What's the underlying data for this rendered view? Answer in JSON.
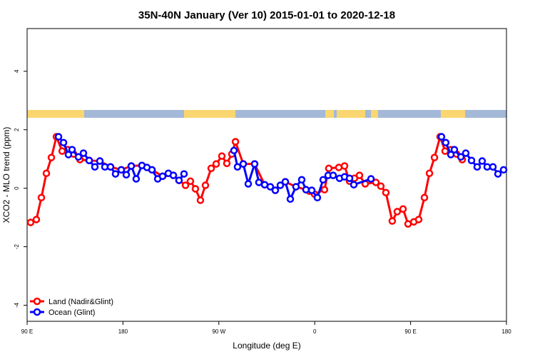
{
  "chart_data": {
    "type": "line",
    "title": "35N-40N January (Ver 10)   2015-01-01 to 2020-12-18",
    "x_label": "Longitude (deg E)",
    "y_label": "XCO2 - MLO trend (ppm)",
    "xlim": [
      90,
      540
    ],
    "ylim": [
      -4.55,
      5.46
    ],
    "xticks": [
      {
        "value": 90,
        "label": "90 E"
      },
      180,
      {
        "value": 270,
        "label": "90 W"
      },
      {
        "value": 360,
        "label": "0"
      },
      {
        "value": 450,
        "label": "90 E"
      },
      {
        "value": 540,
        "label": "180"
      }
    ],
    "yticks": [
      -4,
      -2,
      0,
      2,
      4
    ],
    "legend": "bottom-left",
    "series": [
      {
        "name": "Land (Nadir&Glint)",
        "color": "#ff0000",
        "x": [
          93.3,
          98.7,
          103.4,
          108.1,
          112.8,
          117.5,
          122.9,
          128.2,
          133.6,
          139.6,
          148.3,
          158.3,
          168.4,
          178.4,
          187.8,
          197.8,
          207.2,
          217.2,
          227.3,
          232.6,
          238.7,
          243.3,
          248,
          252.7,
          257.4,
          262.8,
          267.5,
          272.8,
          277.5,
          282.2,
          285.6,
          292.9,
          303.6,
          313,
          323,
          332.4,
          342.4,
          351.8,
          355.1,
          359.8,
          369.2,
          373.2,
          382.6,
          388,
          392.7,
          397.3,
          402,
          407.4,
          417.4,
          422.1,
          426.8,
          432.8,
          437.5,
          442.9,
          447.6,
          453,
          457.6,
          463,
          467.7,
          472.4,
          477.7,
          482.4,
          487.8,
          493.1,
          498.5
        ],
        "values": [
          -1.17,
          -1.07,
          -0.32,
          0.51,
          1.05,
          1.76,
          1.27,
          1.32,
          1.17,
          0.98,
          0.95,
          0.93,
          0.73,
          0.63,
          0.76,
          0.78,
          0.63,
          0.41,
          0.44,
          0.27,
          0.1,
          0.24,
          -0.02,
          -0.41,
          0.1,
          0.68,
          0.83,
          1.1,
          0.85,
          1.17,
          1.59,
          0.83,
          0.83,
          0.12,
          -0.07,
          0.22,
          0.05,
          -0.05,
          -0.1,
          -0.2,
          -0.05,
          0.68,
          0.71,
          0.76,
          0.24,
          0.34,
          0.44,
          0.15,
          0.2,
          0.07,
          -0.15,
          -1.12,
          -0.8,
          -0.71,
          -1.22,
          -1.15,
          -1.07,
          -0.32,
          0.51,
          1.05,
          1.76,
          1.27,
          1.32,
          1.17,
          0.98
        ]
      },
      {
        "name": "Ocean (Glint)",
        "color": "#0000ff",
        "x": [
          119.5,
          124.2,
          128.8,
          132.2,
          138.2,
          142.9,
          148.3,
          153.6,
          158.3,
          163,
          168.3,
          173,
          178.4,
          183.1,
          187.8,
          192.4,
          197.8,
          202.5,
          207.2,
          212.6,
          217.2,
          222.6,
          227.3,
          232.6,
          237.3,
          null,
          284.2,
          287.5,
          292.9,
          297.6,
          303.6,
          307.6,
          313,
          318.3,
          323,
          327.7,
          332.4,
          337.1,
          342.4,
          347.8,
          351.8,
          357.2,
          362.5,
          367.9,
          372.6,
          377.3,
          383.3,
          388,
          392.7,
          396.7,
          412.8,
          null,
          479,
          483,
          487.8,
          491.1,
          497.2,
          501.8,
          507.2,
          512.5,
          517.2,
          521.9,
          527.3,
          532,
          537.3
        ],
        "values": [
          1.76,
          1.56,
          1.15,
          1.32,
          1.07,
          1.2,
          0.95,
          0.73,
          0.93,
          0.73,
          0.73,
          0.49,
          0.63,
          0.46,
          0.76,
          0.32,
          0.78,
          0.71,
          0.63,
          0.32,
          0.41,
          0.51,
          0.44,
          0.27,
          0.49,
          null,
          1.29,
          0.73,
          0.83,
          0.15,
          0.83,
          0.2,
          0.12,
          0.05,
          -0.07,
          0.1,
          0.22,
          -0.37,
          0.05,
          0.29,
          -0.05,
          -0.07,
          -0.32,
          0.29,
          0.44,
          0.44,
          0.34,
          0.39,
          0.34,
          0.12,
          0.32,
          null,
          1.76,
          1.56,
          1.15,
          1.32,
          1.07,
          1.2,
          0.95,
          0.73,
          0.93,
          0.73,
          0.73,
          0.49,
          0.63
        ]
      }
    ]
  }
}
